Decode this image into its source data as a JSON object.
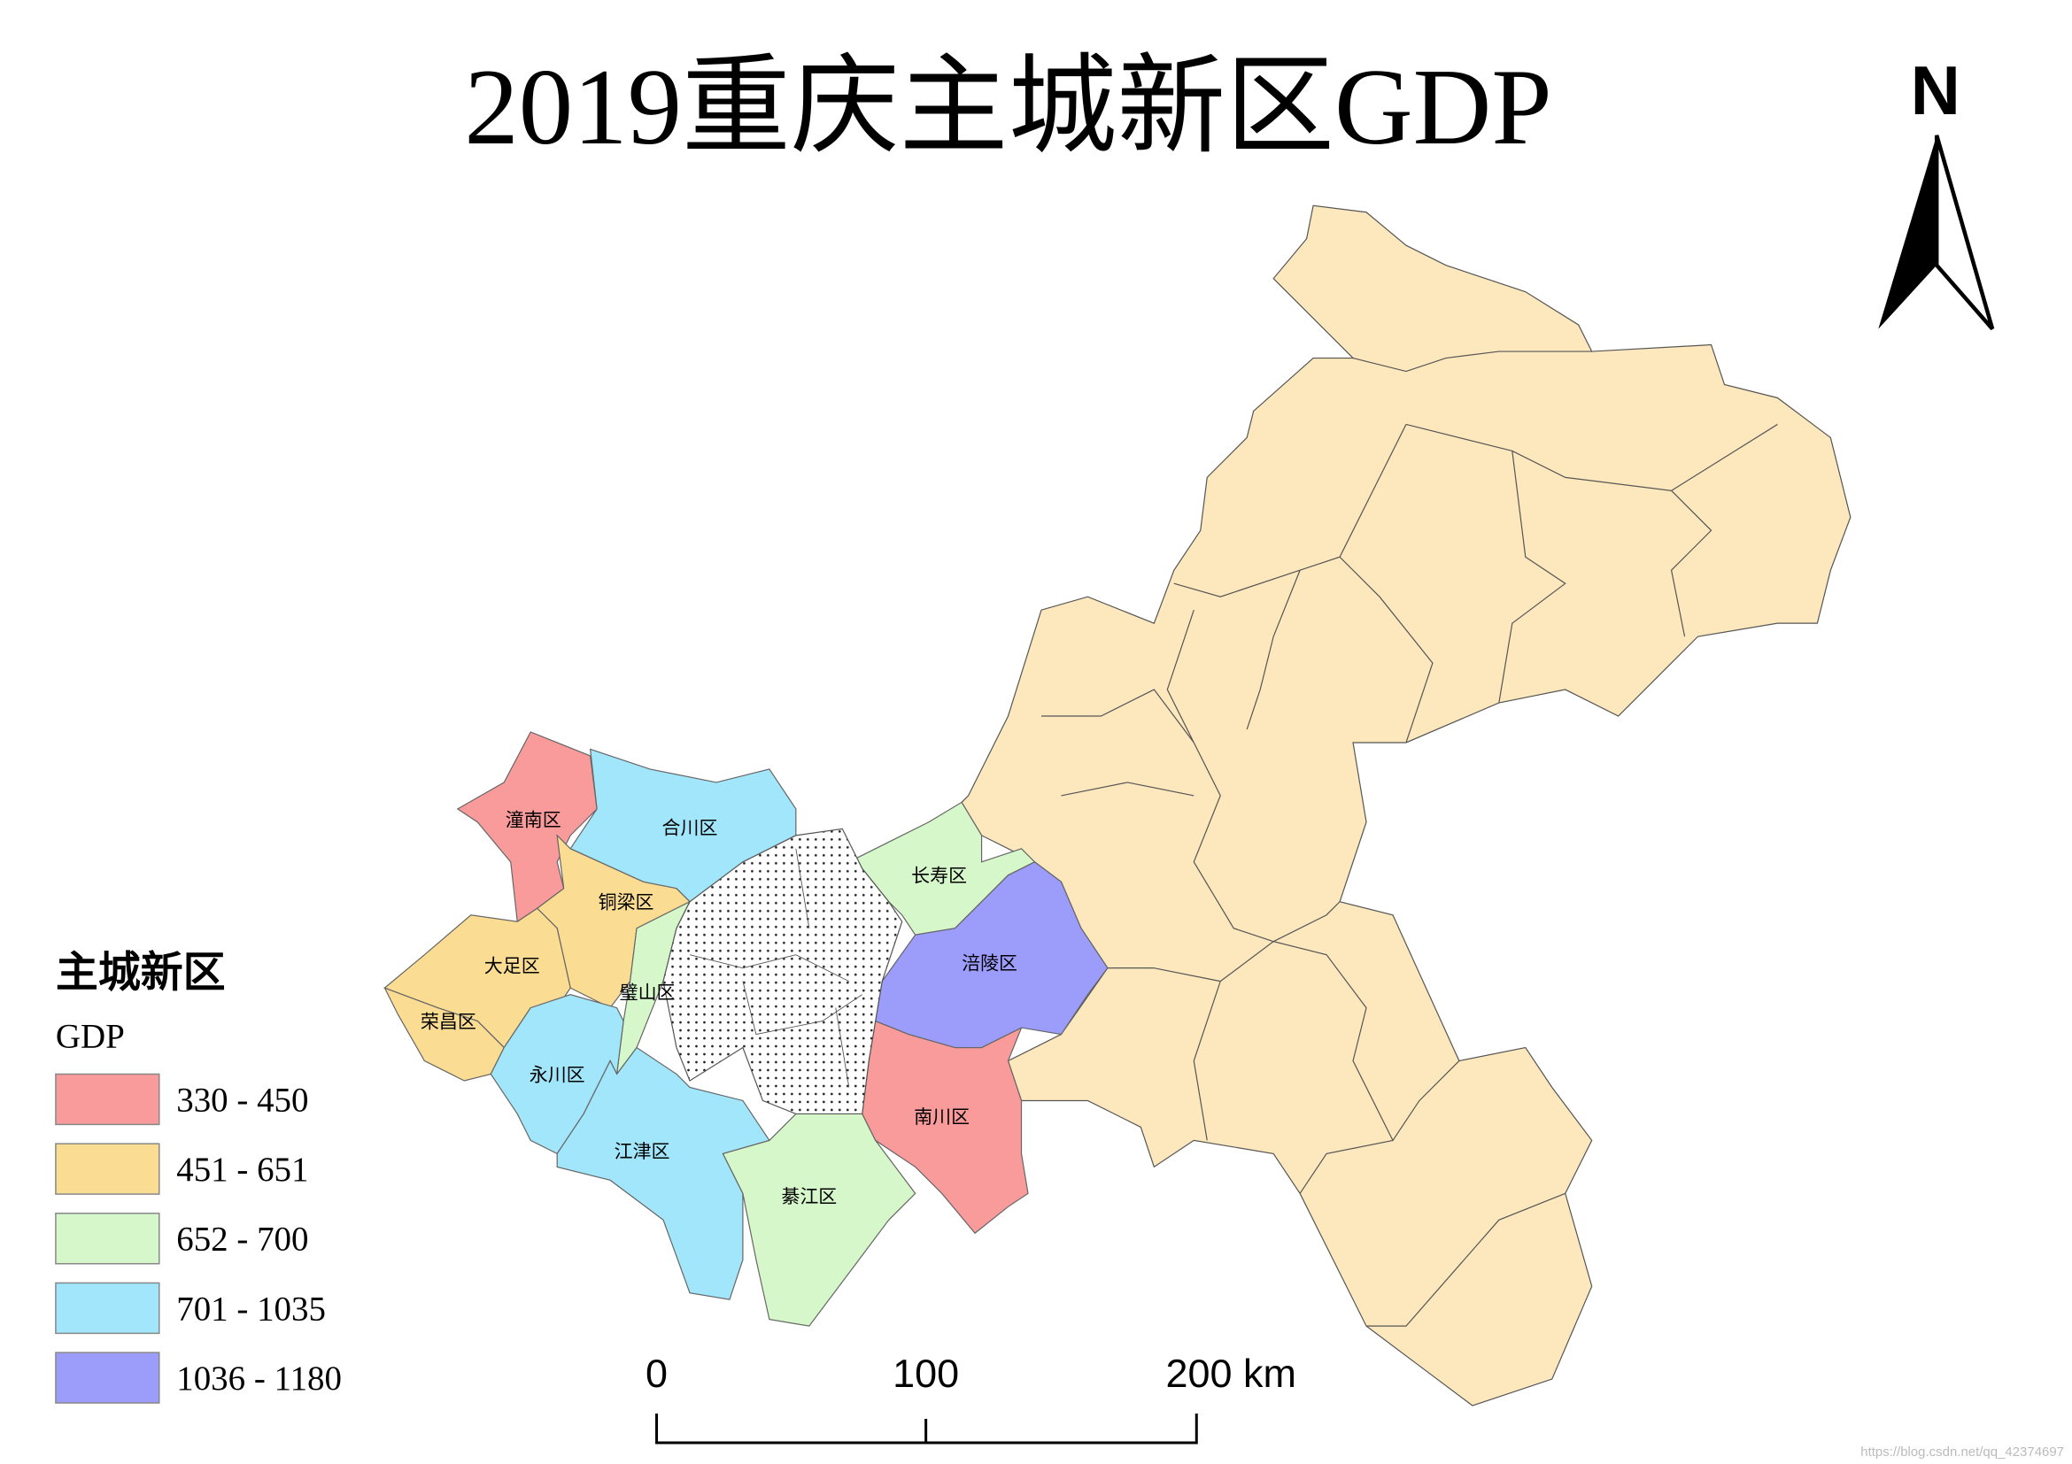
{
  "title": "2019重庆主城新区GDP",
  "north": "N",
  "legend": {
    "title": "主城新区",
    "subtitle": "GDP",
    "items": [
      {
        "label": "330 - 450",
        "color": "#f99b9b"
      },
      {
        "label": "451 - 651",
        "color": "#fbdc93"
      },
      {
        "label": "652 - 700",
        "color": "#d6f7c9"
      },
      {
        "label": "701 - 1035",
        "color": "#a1e6fb"
      },
      {
        "label": "1036 - 1180",
        "color": "#9c9cfb"
      }
    ]
  },
  "districts": [
    {
      "name": "潼南区",
      "color": "#f99b9b"
    },
    {
      "name": "合川区",
      "color": "#a1e6fb"
    },
    {
      "name": "铜梁区",
      "color": "#fbdc93"
    },
    {
      "name": "大足区",
      "color": "#fbdc93"
    },
    {
      "name": "荣昌区",
      "color": "#fbdc93"
    },
    {
      "name": "璧山区",
      "color": "#d6f7c9"
    },
    {
      "name": "永川区",
      "color": "#a1e6fb"
    },
    {
      "name": "江津区",
      "color": "#a1e6fb"
    },
    {
      "name": "綦江区",
      "color": "#d6f7c9"
    },
    {
      "name": "南川区",
      "color": "#f99b9b"
    },
    {
      "name": "长寿区",
      "color": "#d6f7c9"
    },
    {
      "name": "涪陵区",
      "color": "#9c9cfb"
    }
  ],
  "other_color": "#fde8bd",
  "scalebar": {
    "labels": [
      "0",
      "100",
      "200 km"
    ]
  },
  "watermark": "https://blog.csdn.net/qq_42374697"
}
